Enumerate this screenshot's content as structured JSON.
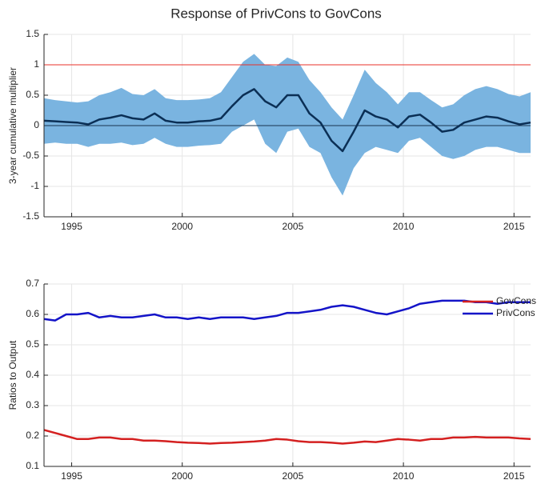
{
  "chart_data": [
    {
      "type": "line",
      "title": "Response of PrivCons to GovCons",
      "ylabel": "3-year cumulative multiplier",
      "x": [
        1993.75,
        1994.25,
        1994.75,
        1995.25,
        1995.75,
        1996.25,
        1996.75,
        1997.25,
        1997.75,
        1998.25,
        1998.75,
        1999.25,
        1999.75,
        2000.25,
        2000.75,
        2001.25,
        2001.75,
        2002.25,
        2002.75,
        2003.25,
        2003.75,
        2004.25,
        2004.75,
        2005.25,
        2005.75,
        2006.25,
        2006.75,
        2007.25,
        2007.75,
        2008.25,
        2008.75,
        2009.25,
        2009.75,
        2010.25,
        2010.75,
        2011.25,
        2011.75,
        2012.25,
        2012.75,
        2013.25,
        2013.75,
        2014.25,
        2014.75,
        2015.25,
        2015.75
      ],
      "xlim": [
        1993.75,
        2015.75
      ],
      "xticks": [
        1995,
        2000,
        2005,
        2010,
        2015
      ],
      "ylim": [
        -1.5,
        1.5
      ],
      "yticks": [
        -1.5,
        -1,
        -0.5,
        0,
        0.5,
        1,
        1.5
      ],
      "grid": true,
      "band": {
        "color": "#7ab4e0",
        "upper": [
          0.45,
          0.42,
          0.4,
          0.38,
          0.4,
          0.5,
          0.55,
          0.62,
          0.52,
          0.5,
          0.6,
          0.45,
          0.42,
          0.42,
          0.43,
          0.45,
          0.55,
          0.8,
          1.05,
          1.18,
          1.0,
          0.98,
          1.12,
          1.05,
          0.75,
          0.55,
          0.3,
          0.1,
          0.5,
          0.92,
          0.7,
          0.55,
          0.35,
          0.55,
          0.55,
          0.42,
          0.3,
          0.35,
          0.5,
          0.6,
          0.65,
          0.6,
          0.52,
          0.48,
          0.55
        ],
        "lower": [
          -0.3,
          -0.28,
          -0.3,
          -0.3,
          -0.35,
          -0.3,
          -0.3,
          -0.28,
          -0.32,
          -0.3,
          -0.2,
          -0.3,
          -0.35,
          -0.35,
          -0.33,
          -0.32,
          -0.3,
          -0.1,
          0.0,
          0.1,
          -0.3,
          -0.45,
          -0.1,
          -0.05,
          -0.35,
          -0.45,
          -0.85,
          -1.15,
          -0.7,
          -0.45,
          -0.35,
          -0.4,
          -0.45,
          -0.25,
          -0.2,
          -0.35,
          -0.5,
          -0.55,
          -0.5,
          -0.4,
          -0.35,
          -0.35,
          -0.4,
          -0.45,
          -0.45
        ]
      },
      "hlines": [
        {
          "value": 1,
          "color": "#e8302a"
        },
        {
          "value": 0,
          "color": "#1a3550"
        }
      ],
      "series": [
        {
          "color": "#0b2f55",
          "values": [
            0.08,
            0.07,
            0.06,
            0.05,
            0.02,
            0.1,
            0.13,
            0.17,
            0.12,
            0.1,
            0.2,
            0.08,
            0.05,
            0.05,
            0.07,
            0.08,
            0.12,
            0.32,
            0.5,
            0.6,
            0.4,
            0.3,
            0.5,
            0.5,
            0.2,
            0.05,
            -0.25,
            -0.42,
            -0.1,
            0.25,
            0.15,
            0.1,
            -0.03,
            0.15,
            0.18,
            0.05,
            -0.1,
            -0.07,
            0.05,
            0.1,
            0.15,
            0.13,
            0.07,
            0.02,
            0.05
          ]
        }
      ]
    },
    {
      "type": "line",
      "ylabel": "Ratios to Output",
      "x": [
        1993.75,
        1994.25,
        1994.75,
        1995.25,
        1995.75,
        1996.25,
        1996.75,
        1997.25,
        1997.75,
        1998.25,
        1998.75,
        1999.25,
        1999.75,
        2000.25,
        2000.75,
        2001.25,
        2001.75,
        2002.25,
        2002.75,
        2003.25,
        2003.75,
        2004.25,
        2004.75,
        2005.25,
        2005.75,
        2006.25,
        2006.75,
        2007.25,
        2007.75,
        2008.25,
        2008.75,
        2009.25,
        2009.75,
        2010.25,
        2010.75,
        2011.25,
        2011.75,
        2012.25,
        2012.75,
        2013.25,
        2013.75,
        2014.25,
        2014.75,
        2015.25,
        2015.75
      ],
      "xlim": [
        1993.75,
        2015.75
      ],
      "xticks": [
        1995,
        2000,
        2005,
        2010,
        2015
      ],
      "ylim": [
        0.1,
        0.7
      ],
      "yticks": [
        0.1,
        0.2,
        0.3,
        0.4,
        0.5,
        0.6,
        0.7
      ],
      "grid": true,
      "legend": "upper right",
      "series": [
        {
          "name": "GovCons",
          "color": "#d42020",
          "values": [
            0.22,
            0.21,
            0.2,
            0.19,
            0.19,
            0.195,
            0.195,
            0.19,
            0.19,
            0.185,
            0.185,
            0.183,
            0.18,
            0.178,
            0.177,
            0.175,
            0.177,
            0.178,
            0.18,
            0.182,
            0.185,
            0.19,
            0.188,
            0.183,
            0.18,
            0.18,
            0.178,
            0.175,
            0.178,
            0.182,
            0.18,
            0.185,
            0.19,
            0.188,
            0.185,
            0.19,
            0.19,
            0.195,
            0.195,
            0.197,
            0.195,
            0.195,
            0.195,
            0.192,
            0.19
          ]
        },
        {
          "name": "PrivCons",
          "color": "#1414c8",
          "values": [
            0.585,
            0.58,
            0.6,
            0.6,
            0.605,
            0.59,
            0.595,
            0.59,
            0.59,
            0.595,
            0.6,
            0.59,
            0.59,
            0.585,
            0.59,
            0.585,
            0.59,
            0.59,
            0.59,
            0.585,
            0.59,
            0.595,
            0.605,
            0.605,
            0.61,
            0.615,
            0.625,
            0.63,
            0.625,
            0.615,
            0.605,
            0.6,
            0.61,
            0.62,
            0.635,
            0.64,
            0.645,
            0.645,
            0.645,
            0.64,
            0.64,
            0.635,
            0.64,
            0.64,
            0.64
          ]
        }
      ]
    }
  ]
}
